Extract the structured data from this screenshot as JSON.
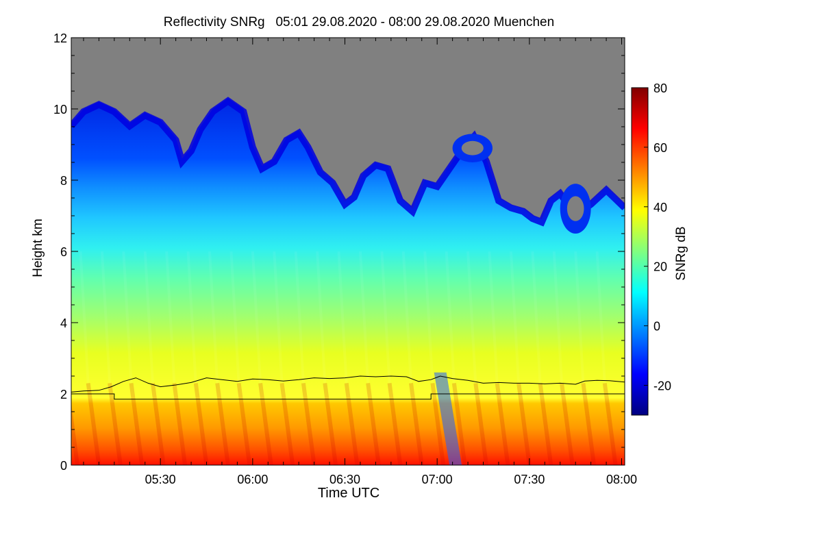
{
  "chart_data": {
    "type": "heatmap",
    "title": "Reflectivity SNRg   05:01 29.08.2020 - 08:00 29.08.2020 Muenchen",
    "xlabel": "Time UTC",
    "ylabel": "Height km",
    "xlim_minutes_utc": [
      301,
      481
    ],
    "ylim": [
      0,
      12
    ],
    "x_ticks": [
      {
        "value": 330,
        "label": "05:30"
      },
      {
        "value": 360,
        "label": "06:00"
      },
      {
        "value": 390,
        "label": "06:30"
      },
      {
        "value": 420,
        "label": "07:00"
      },
      {
        "value": 450,
        "label": "07:30"
      },
      {
        "value": 480,
        "label": "08:00"
      }
    ],
    "y_ticks": [
      0,
      2,
      4,
      6,
      8,
      10,
      12
    ],
    "colorbar": {
      "label": "SNRg dB",
      "range": [
        -30,
        80
      ],
      "ticks": [
        -20,
        0,
        20,
        40,
        60,
        80
      ],
      "colors": [
        "#000080",
        "#0000ff",
        "#0080ff",
        "#00ffff",
        "#80ff80",
        "#ffff00",
        "#ff8000",
        "#ff0000",
        "#800000"
      ]
    },
    "no_signal_color": "#808080",
    "cloud_top_km": [
      [
        301,
        9.6
      ],
      [
        305,
        10.0
      ],
      [
        310,
        10.2
      ],
      [
        315,
        10.0
      ],
      [
        320,
        9.6
      ],
      [
        325,
        9.9
      ],
      [
        330,
        9.7
      ],
      [
        335,
        9.2
      ],
      [
        337,
        8.6
      ],
      [
        340,
        8.9
      ],
      [
        343,
        9.5
      ],
      [
        347,
        10.0
      ],
      [
        352,
        10.3
      ],
      [
        357,
        10.0
      ],
      [
        360,
        9.0
      ],
      [
        363,
        8.4
      ],
      [
        367,
        8.6
      ],
      [
        371,
        9.2
      ],
      [
        375,
        9.4
      ],
      [
        378,
        9.0
      ],
      [
        382,
        8.3
      ],
      [
        386,
        8.0
      ],
      [
        390,
        7.4
      ],
      [
        393,
        7.6
      ],
      [
        396,
        8.2
      ],
      [
        400,
        8.5
      ],
      [
        404,
        8.4
      ],
      [
        408,
        7.5
      ],
      [
        412,
        7.2
      ],
      [
        416,
        8.0
      ],
      [
        420,
        7.9
      ],
      [
        424,
        8.4
      ],
      [
        428,
        8.9
      ],
      [
        432,
        9.3
      ],
      [
        436,
        8.6
      ],
      [
        440,
        7.5
      ],
      [
        444,
        7.3
      ],
      [
        448,
        7.2
      ],
      [
        451,
        7.0
      ],
      [
        454,
        6.9
      ],
      [
        457,
        7.5
      ],
      [
        460,
        7.7
      ],
      [
        465,
        7.1
      ],
      [
        470,
        7.4
      ],
      [
        475,
        7.8
      ],
      [
        481,
        7.3
      ]
    ],
    "inner_clouds_km": [
      {
        "t": [
          425,
          438
        ],
        "top": 9.3,
        "bottom": 8.5
      },
      {
        "t": [
          460,
          470
        ],
        "top": 7.9,
        "bottom": 6.5
      }
    ],
    "mixed_layer_height_km": [
      [
        301,
        2.05
      ],
      [
        305,
        2.08
      ],
      [
        310,
        2.1
      ],
      [
        314,
        2.2
      ],
      [
        318,
        2.35
      ],
      [
        322,
        2.45
      ],
      [
        326,
        2.3
      ],
      [
        330,
        2.2
      ],
      [
        335,
        2.25
      ],
      [
        340,
        2.32
      ],
      [
        345,
        2.45
      ],
      [
        350,
        2.4
      ],
      [
        355,
        2.35
      ],
      [
        360,
        2.42
      ],
      [
        365,
        2.4
      ],
      [
        370,
        2.36
      ],
      [
        375,
        2.4
      ],
      [
        380,
        2.45
      ],
      [
        385,
        2.43
      ],
      [
        390,
        2.45
      ],
      [
        395,
        2.5
      ],
      [
        400,
        2.48
      ],
      [
        405,
        2.5
      ],
      [
        410,
        2.48
      ],
      [
        414,
        2.35
      ],
      [
        418,
        2.4
      ],
      [
        421,
        2.5
      ],
      [
        425,
        2.43
      ],
      [
        430,
        2.38
      ],
      [
        435,
        2.3
      ],
      [
        440,
        2.32
      ],
      [
        445,
        2.3
      ],
      [
        450,
        2.3
      ],
      [
        455,
        2.28
      ],
      [
        460,
        2.3
      ],
      [
        465,
        2.27
      ],
      [
        468,
        2.36
      ],
      [
        472,
        2.38
      ],
      [
        476,
        2.37
      ],
      [
        481,
        2.33
      ]
    ],
    "lower_layer_height_km": [
      [
        301,
        2.0
      ],
      [
        315,
        2.0
      ],
      [
        315,
        1.85
      ],
      [
        418,
        1.85
      ],
      [
        418,
        2.0
      ],
      [
        481,
        2.0
      ]
    ]
  }
}
